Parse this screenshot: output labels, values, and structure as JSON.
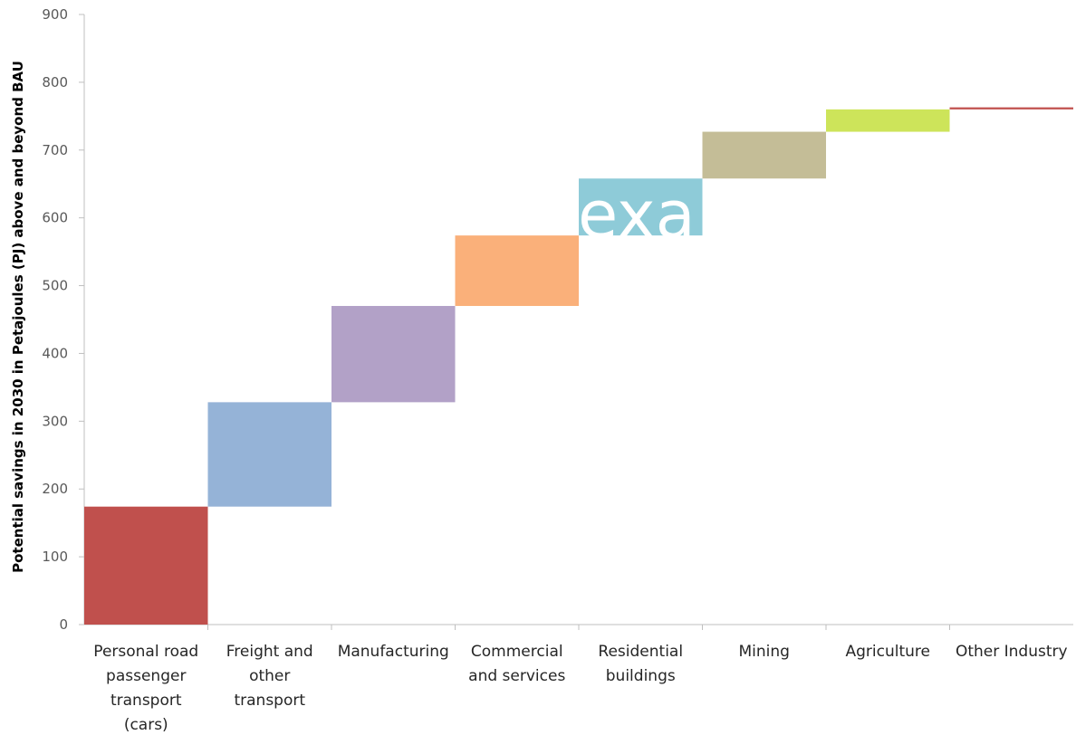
{
  "chart_data": {
    "type": "bar",
    "subtype": "waterfall",
    "title": "",
    "xlabel": "",
    "ylabel": "Potential savings in 2030 in Petajoules (PJ) above and beyond BAU",
    "ylim": [
      0,
      900
    ],
    "yticks": [
      0,
      100,
      200,
      300,
      400,
      500,
      600,
      700,
      800,
      900
    ],
    "grid": false,
    "legend": "none",
    "categories": [
      [
        "Personal road",
        "passenger",
        "transport",
        "(cars)"
      ],
      [
        "Freight and",
        "other",
        "transport"
      ],
      [
        "Manufacturing"
      ],
      [
        "Commercial",
        "and services"
      ],
      [
        "Residential",
        "buildings"
      ],
      [
        "Mining"
      ],
      [
        "Agriculture"
      ],
      [
        "Other Industry"
      ]
    ],
    "values": [
      174,
      154,
      142,
      104,
      84,
      69,
      33,
      3
    ],
    "cumulative_top": [
      174,
      328,
      470,
      574,
      658,
      727,
      760,
      763
    ],
    "colors": [
      "#c0504d",
      "#95b3d7",
      "#b2a1c7",
      "#fab07a",
      "#8ecbd8",
      "#c4bd97",
      "#cde45a",
      "#c0504d"
    ]
  },
  "watermark": {
    "text": "exa"
  }
}
